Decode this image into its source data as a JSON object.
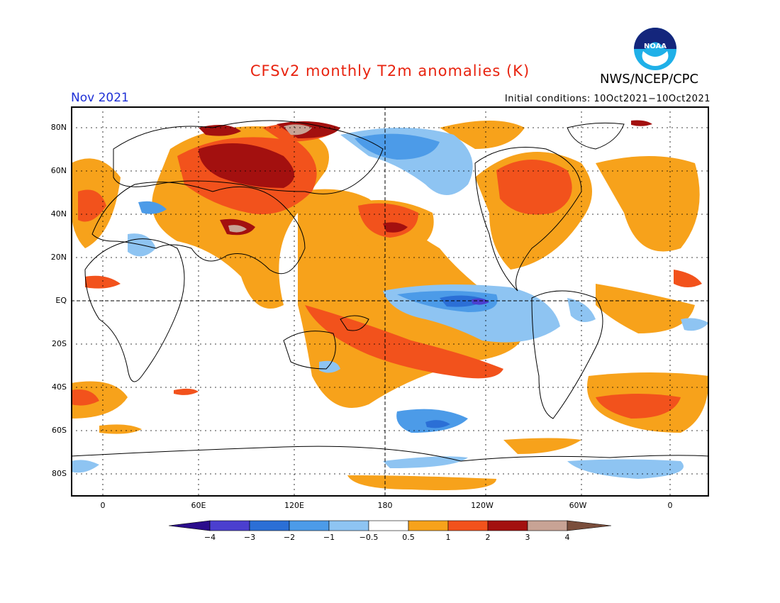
{
  "header": {
    "title": "CFSv2 monthly T2m anomalies (K)",
    "month": "Nov 2021",
    "initial_conditions": "Initial conditions: 10Oct2021−10Oct2021",
    "agency": "NWS/NCEP/CPC",
    "logo_text": "NOAA"
  },
  "axes": {
    "lat_ticks": [
      "80N",
      "60N",
      "40N",
      "20N",
      "EQ",
      "20S",
      "40S",
      "60S",
      "80S"
    ],
    "lon_ticks": [
      "0",
      "60E",
      "120E",
      "180",
      "120W",
      "60W",
      "0"
    ]
  },
  "colorbar": {
    "labels": [
      "−4",
      "−3",
      "−2",
      "−1",
      "−0.5",
      "0.5",
      "1",
      "2",
      "3",
      "4"
    ],
    "colors": [
      "#2b0d8c",
      "#4b3fcf",
      "#2b6fd6",
      "#4c9be8",
      "#8ec4f2",
      "#ffffff",
      "#f7a21b",
      "#f2521c",
      "#a3100f",
      "#c8a395",
      "#7a4e3c"
    ]
  },
  "chart_data": {
    "type": "heatmap",
    "variable": "T2m anomalies (K)",
    "lat_range": [
      -90,
      90
    ],
    "lon_range": [
      -15,
      375
    ],
    "grid": true,
    "anomaly_regions": [
      {
        "name": "Siberia / Northern Asia",
        "lon": [
          45,
          130
        ],
        "lat": [
          45,
          80
        ],
        "level": 3
      },
      {
        "name": "Arctic Siberia peak",
        "lon": [
          90,
          110
        ],
        "lat": [
          75,
          82
        ],
        "level": 4
      },
      {
        "name": "Tibetan Plateau",
        "lon": [
          78,
          100
        ],
        "lat": [
          27,
          38
        ],
        "level": 4
      },
      {
        "name": "North Pacific",
        "lon": [
          150,
          210
        ],
        "lat": [
          25,
          45
        ],
        "level": 3
      },
      {
        "name": "South Pacific diagonal band",
        "lon": [
          120,
          250
        ],
        "lat": [
          -40,
          -10
        ],
        "level": 2
      },
      {
        "name": "Eastern Equatorial Pacific (La Nina)",
        "lon": [
          185,
          280
        ],
        "lat": [
          -10,
          3
        ],
        "level": -2
      },
      {
        "name": "Eastern Equatorial Pacific core",
        "lon": [
          225,
          245
        ],
        "lat": [
          -3,
          1
        ],
        "level": -3
      },
      {
        "name": "North America / Canada",
        "lon": [
          240,
          300
        ],
        "lat": [
          35,
          70
        ],
        "level": 2
      },
      {
        "name": "Southern Ocean Pacific sector",
        "lon": [
          190,
          250
        ],
        "lat": [
          -62,
          -50
        ],
        "level": -2
      },
      {
        "name": "South Atlantic",
        "lon": [
          290,
          360
        ],
        "lat": [
          -55,
          -40
        ],
        "level": 2
      }
    ]
  }
}
